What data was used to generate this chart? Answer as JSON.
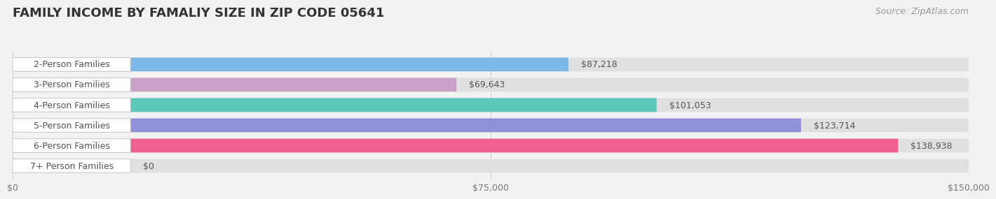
{
  "title": "FAMILY INCOME BY FAMALIY SIZE IN ZIP CODE 05641",
  "source": "Source: ZipAtlas.com",
  "categories": [
    "2-Person Families",
    "3-Person Families",
    "4-Person Families",
    "5-Person Families",
    "6-Person Families",
    "7+ Person Families"
  ],
  "values": [
    87218,
    69643,
    101053,
    123714,
    138938,
    0
  ],
  "bar_colors": [
    "#7eb8e8",
    "#c9a0c8",
    "#5bc8b8",
    "#9090d8",
    "#f06090",
    "#f5d5a0"
  ],
  "value_labels": [
    "$87,218",
    "$69,643",
    "$101,053",
    "$123,714",
    "$138,938",
    "$0"
  ],
  "xlim": [
    0,
    150000
  ],
  "xticks": [
    0,
    75000,
    150000
  ],
  "xticklabels": [
    "$0",
    "$75,000",
    "$150,000"
  ],
  "background_color": "#f2f2f2",
  "bar_bg_color": "#e0e0e0",
  "title_fontsize": 13,
  "label_fontsize": 9,
  "value_fontsize": 9,
  "source_fontsize": 9
}
